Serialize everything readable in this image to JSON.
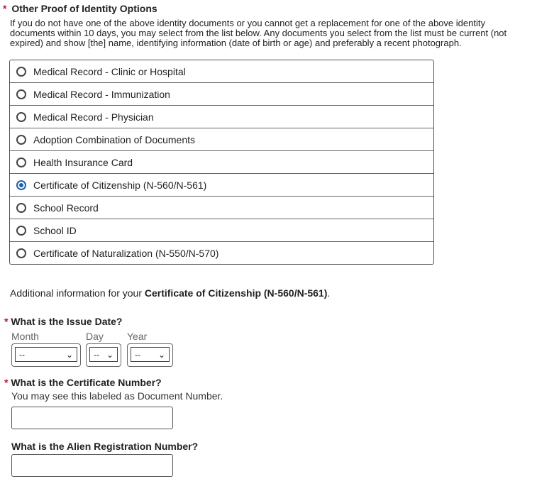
{
  "section": {
    "title": "Other Proof of Identity Options",
    "intro": "If you do not have one of the above identity documents or you cannot get a replacement for one of the above identity documents within 10 days, you may select from the list below. Any documents you select from the list must be current (not expired) and show [the] name, identifying information (date of birth or age) and preferably a recent photograph."
  },
  "options": [
    {
      "label": "Medical Record - Clinic or Hospital",
      "selected": false
    },
    {
      "label": "Medical Record - Immunization",
      "selected": false
    },
    {
      "label": "Medical Record - Physician",
      "selected": false
    },
    {
      "label": "Adoption Combination of Documents",
      "selected": false
    },
    {
      "label": "Health Insurance Card",
      "selected": false
    },
    {
      "label": "Certificate of Citizenship (N-560/N-561)",
      "selected": true
    },
    {
      "label": "School Record",
      "selected": false
    },
    {
      "label": "School ID",
      "selected": false
    },
    {
      "label": "Certificate of Naturalization (N-550/N-570)",
      "selected": false
    }
  ],
  "additional": {
    "prefix": "Additional information for your ",
    "doc": "Certificate of Citizenship (N-560/N-561)",
    "suffix": "."
  },
  "issue_date": {
    "question": "What is the Issue Date?",
    "month_label": "Month",
    "day_label": "Day",
    "year_label": "Year",
    "month_value": "--",
    "day_value": "--",
    "year_value": "--"
  },
  "certificate": {
    "question": "What is the Certificate Number?",
    "hint": "You may see this labeled as Document Number.",
    "value": ""
  },
  "alien": {
    "question": "What is the Alien Registration Number?",
    "value": ""
  },
  "required_mark": "*",
  "colors": {
    "accent": "#1a5fb4",
    "required": "#c8102e"
  }
}
